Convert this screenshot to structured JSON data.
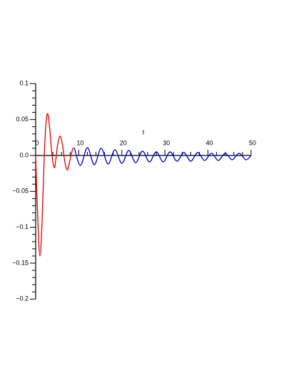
{
  "chart_data": {
    "type": "line",
    "x_label": "t",
    "series": [
      {
        "color": "#e00000",
        "x": [
          0,
          0.5,
          1.0,
          1.5,
          2.0,
          2.4,
          2.8,
          3.3,
          3.8,
          4.3,
          4.7,
          5.1,
          5.7,
          6.3,
          6.8,
          7.4,
          8.0,
          8.6,
          9.0
        ],
        "values": [
          0.0,
          -0.09,
          -0.14,
          -0.09,
          0.0,
          0.045,
          0.058,
          0.035,
          0.0,
          -0.017,
          -0.005,
          0.015,
          0.027,
          0.012,
          -0.01,
          -0.02,
          -0.005,
          0.009,
          0.01
        ]
      },
      {
        "color": "#0000cc",
        "x": [
          9.0,
          10.4,
          12.0,
          13.6,
          15.2,
          16.8,
          18.4,
          20.0,
          21.6,
          23.2,
          24.8,
          26.4,
          28.0,
          29.6,
          31.2,
          32.8,
          34.4,
          36.0,
          37.6,
          39.2,
          40.8,
          42.4,
          44.0,
          45.6,
          47.2,
          48.8,
          50.0
        ],
        "values": [
          0.01,
          -0.014,
          0.011,
          -0.013,
          0.01,
          -0.012,
          0.008,
          -0.011,
          0.007,
          -0.01,
          0.006,
          -0.009,
          0.005,
          -0.009,
          0.005,
          -0.008,
          0.004,
          -0.008,
          0.004,
          -0.007,
          0.003,
          -0.007,
          0.003,
          -0.006,
          0.003,
          -0.006,
          0.0
        ]
      }
    ],
    "xlim": [
      0,
      50
    ],
    "xticks": [
      0,
      10,
      20,
      30,
      40,
      50
    ],
    "xminorticks": [
      2,
      4,
      6,
      8,
      12,
      14,
      16,
      18,
      22,
      24,
      26,
      28,
      32,
      34,
      36,
      38,
      42,
      44,
      46,
      48
    ],
    "ylim": [
      -0.2,
      0.1
    ],
    "yticks": [
      0.1,
      0.05,
      {
        "value": 0,
        "label": "0.0"
      },
      {
        "value": -0.05,
        "label": "−0.05"
      },
      {
        "value": -0.1,
        "label": "−0.1"
      },
      {
        "value": -0.15,
        "label": "−0.15"
      },
      {
        "value": -0.2,
        "label": "−0.2"
      }
    ],
    "yminorticks": [
      0.09,
      0.08,
      0.07,
      0.06,
      0.04,
      0.03,
      0.02,
      0.01,
      -0.01,
      -0.02,
      -0.03,
      -0.04,
      -0.06,
      -0.07,
      -0.08,
      -0.09,
      -0.11,
      -0.12,
      -0.13,
      -0.14,
      -0.16,
      -0.17,
      -0.18,
      -0.19
    ]
  }
}
